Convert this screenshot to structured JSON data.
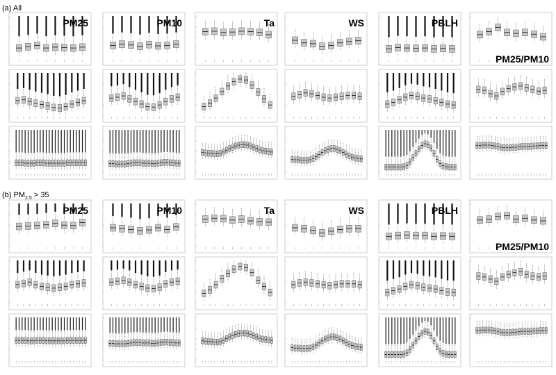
{
  "sections": [
    {
      "label_prefix": "(a) All",
      "label_sub": "",
      "label_suffix": ""
    },
    {
      "label_prefix": "(b) PM",
      "label_sub": "2.5",
      "label_suffix": " > 35"
    }
  ],
  "variables": [
    "PM25",
    "PM10",
    "Ta",
    "WS",
    "PBLH",
    "PM25/PM10"
  ],
  "row_types": [
    "by-year",
    "by-month",
    "by-hour"
  ],
  "colors": {
    "box_fill": "#c8c8c8",
    "box_stroke": "#555555",
    "median": "#222222",
    "frame": "#aaaaaa"
  },
  "chart_data": {
    "type": "box",
    "layout": {
      "panel_rows": 6,
      "panel_cols": 6
    },
    "panels_by_section": [
      {
        "section": "(a) All",
        "rows": [
          {
            "row_type": "by-year",
            "n": 8,
            "medians": {
              "PM25": [
                0.24,
                0.27,
                0.3,
                0.24,
                0.26,
                0.25,
                0.24,
                0.26
              ],
              "PM10": [
                0.3,
                0.33,
                0.31,
                0.28,
                0.32,
                0.29,
                0.3,
                0.33
              ],
              "Ta": [
                0.62,
                0.63,
                0.6,
                0.61,
                0.63,
                0.62,
                0.6,
                0.55
              ],
              "WS": [
                0.42,
                0.36,
                0.34,
                0.28,
                0.3,
                0.36,
                0.39,
                0.41
              ],
              "PBLH": [
                0.22,
                0.25,
                0.24,
                0.23,
                0.24,
                0.22,
                0.23,
                0.22
              ],
              "PM25/PM10": [
                0.55,
                0.62,
                0.72,
                0.6,
                0.58,
                0.6,
                0.56,
                0.5
              ]
            }
          },
          {
            "row_type": "by-month",
            "n": 12,
            "medians": {
              "PM25": [
                0.34,
                0.36,
                0.32,
                0.28,
                0.25,
                0.22,
                0.18,
                0.17,
                0.2,
                0.26,
                0.3,
                0.34
              ],
              "PM10": [
                0.4,
                0.42,
                0.45,
                0.38,
                0.32,
                0.26,
                0.2,
                0.19,
                0.24,
                0.32,
                0.38,
                0.42
              ],
              "Ta": [
                0.2,
                0.28,
                0.4,
                0.55,
                0.68,
                0.78,
                0.84,
                0.82,
                0.7,
                0.54,
                0.38,
                0.24
              ],
              "WS": [
                0.44,
                0.48,
                0.52,
                0.5,
                0.46,
                0.42,
                0.4,
                0.42,
                0.44,
                0.46,
                0.46,
                0.44
              ],
              "PBLH": [
                0.26,
                0.3,
                0.36,
                0.42,
                0.46,
                0.44,
                0.4,
                0.38,
                0.34,
                0.3,
                0.26,
                0.24
              ],
              "PM25/PM10": [
                0.6,
                0.58,
                0.5,
                0.45,
                0.55,
                0.62,
                0.66,
                0.68,
                0.64,
                0.6,
                0.56,
                0.58
              ]
            }
          },
          {
            "row_type": "by-hour",
            "n": 24,
            "medians": {
              "PM25": [
                0.22,
                0.22,
                0.22,
                0.21,
                0.21,
                0.21,
                0.21,
                0.22,
                0.22,
                0.22,
                0.21,
                0.21,
                0.21,
                0.21,
                0.21,
                0.21,
                0.21,
                0.22,
                0.22,
                0.22,
                0.22,
                0.22,
                0.22,
                0.22
              ],
              "PM10": [
                0.2,
                0.2,
                0.19,
                0.19,
                0.19,
                0.19,
                0.2,
                0.21,
                0.22,
                0.22,
                0.22,
                0.21,
                0.21,
                0.21,
                0.2,
                0.2,
                0.21,
                0.22,
                0.23,
                0.23,
                0.22,
                0.22,
                0.21,
                0.21
              ],
              "Ta": [
                0.46,
                0.45,
                0.44,
                0.44,
                0.43,
                0.43,
                0.44,
                0.47,
                0.51,
                0.55,
                0.58,
                0.61,
                0.63,
                0.64,
                0.64,
                0.63,
                0.61,
                0.58,
                0.55,
                0.52,
                0.5,
                0.49,
                0.48,
                0.47
              ],
              "WS": [
                0.3,
                0.29,
                0.29,
                0.28,
                0.28,
                0.28,
                0.29,
                0.32,
                0.36,
                0.41,
                0.46,
                0.5,
                0.53,
                0.55,
                0.55,
                0.53,
                0.5,
                0.46,
                0.42,
                0.38,
                0.35,
                0.33,
                0.32,
                0.31
              ],
              "PBLH": [
                0.12,
                0.12,
                0.12,
                0.12,
                0.12,
                0.12,
                0.13,
                0.16,
                0.24,
                0.34,
                0.44,
                0.54,
                0.62,
                0.66,
                0.64,
                0.56,
                0.44,
                0.3,
                0.2,
                0.15,
                0.13,
                0.12,
                0.12,
                0.12
              ],
              "PM25/PM10": [
                0.62,
                0.62,
                0.63,
                0.63,
                0.63,
                0.62,
                0.61,
                0.6,
                0.58,
                0.57,
                0.57,
                0.57,
                0.58,
                0.58,
                0.59,
                0.6,
                0.6,
                0.6,
                0.6,
                0.61,
                0.61,
                0.62,
                0.62,
                0.62
              ]
            }
          }
        ]
      },
      {
        "section": "(b) PM2.5 > 35",
        "rows": [
          {
            "row_type": "by-year",
            "n": 8,
            "medians": {
              "PM25": [
                0.45,
                0.46,
                0.47,
                0.49,
                0.52,
                0.48,
                0.47,
                0.54
              ],
              "PM10": [
                0.42,
                0.4,
                0.38,
                0.35,
                0.37,
                0.42,
                0.38,
                0.44
              ],
              "Ta": [
                0.62,
                0.64,
                0.63,
                0.6,
                0.62,
                0.58,
                0.56,
                0.55
              ],
              "WS": [
                0.42,
                0.4,
                0.36,
                0.3,
                0.34,
                0.38,
                0.4,
                0.4
              ],
              "PBLH": [
                0.22,
                0.24,
                0.25,
                0.24,
                0.24,
                0.22,
                0.23,
                0.22
              ],
              "PM25/PM10": [
                0.6,
                0.62,
                0.68,
                0.7,
                0.62,
                0.64,
                0.6,
                0.58
              ]
            }
          },
          {
            "row_type": "by-month",
            "n": 12,
            "medians": {
              "PM25": [
                0.42,
                0.45,
                0.48,
                0.42,
                0.38,
                0.36,
                0.34,
                0.36,
                0.38,
                0.42,
                0.44,
                0.46
              ],
              "PM10": [
                0.48,
                0.5,
                0.52,
                0.48,
                0.42,
                0.38,
                0.34,
                0.33,
                0.36,
                0.44,
                0.48,
                0.5
              ],
              "Ta": [
                0.22,
                0.3,
                0.42,
                0.56,
                0.68,
                0.78,
                0.84,
                0.82,
                0.7,
                0.52,
                0.38,
                0.24
              ],
              "WS": [
                0.42,
                0.46,
                0.48,
                0.46,
                0.44,
                0.42,
                0.4,
                0.42,
                0.44,
                0.44,
                0.44,
                0.42
              ],
              "PBLH": [
                0.24,
                0.28,
                0.32,
                0.38,
                0.42,
                0.4,
                0.36,
                0.34,
                0.32,
                0.28,
                0.25,
                0.24
              ],
              "PM25/PM10": [
                0.62,
                0.6,
                0.55,
                0.5,
                0.6,
                0.66,
                0.7,
                0.72,
                0.66,
                0.62,
                0.6,
                0.62
              ]
            }
          },
          {
            "row_type": "by-hour",
            "n": 24,
            "medians": {
              "PM25": [
                0.45,
                0.45,
                0.45,
                0.45,
                0.44,
                0.44,
                0.44,
                0.45,
                0.45,
                0.45,
                0.44,
                0.44,
                0.44,
                0.44,
                0.44,
                0.44,
                0.44,
                0.45,
                0.45,
                0.45,
                0.45,
                0.45,
                0.45,
                0.45
              ],
              "PM10": [
                0.38,
                0.38,
                0.37,
                0.37,
                0.37,
                0.37,
                0.38,
                0.39,
                0.4,
                0.4,
                0.4,
                0.39,
                0.39,
                0.39,
                0.38,
                0.38,
                0.39,
                0.4,
                0.41,
                0.41,
                0.4,
                0.4,
                0.39,
                0.39
              ],
              "Ta": [
                0.44,
                0.43,
                0.42,
                0.42,
                0.41,
                0.41,
                0.42,
                0.45,
                0.49,
                0.53,
                0.56,
                0.59,
                0.61,
                0.62,
                0.62,
                0.61,
                0.59,
                0.56,
                0.53,
                0.5,
                0.48,
                0.47,
                0.46,
                0.45
              ],
              "WS": [
                0.28,
                0.27,
                0.27,
                0.26,
                0.26,
                0.26,
                0.27,
                0.3,
                0.34,
                0.39,
                0.44,
                0.48,
                0.51,
                0.53,
                0.53,
                0.51,
                0.48,
                0.44,
                0.4,
                0.36,
                0.33,
                0.31,
                0.3,
                0.29
              ],
              "PBLH": [
                0.12,
                0.12,
                0.12,
                0.12,
                0.12,
                0.12,
                0.13,
                0.16,
                0.24,
                0.34,
                0.44,
                0.54,
                0.62,
                0.66,
                0.64,
                0.56,
                0.44,
                0.3,
                0.2,
                0.15,
                0.13,
                0.12,
                0.12,
                0.12
              ],
              "PM25/PM10": [
                0.68,
                0.68,
                0.69,
                0.69,
                0.69,
                0.68,
                0.67,
                0.66,
                0.64,
                0.63,
                0.63,
                0.63,
                0.64,
                0.64,
                0.65,
                0.66,
                0.66,
                0.66,
                0.66,
                0.67,
                0.67,
                0.68,
                0.68,
                0.68
              ]
            }
          }
        ]
      }
    ]
  }
}
